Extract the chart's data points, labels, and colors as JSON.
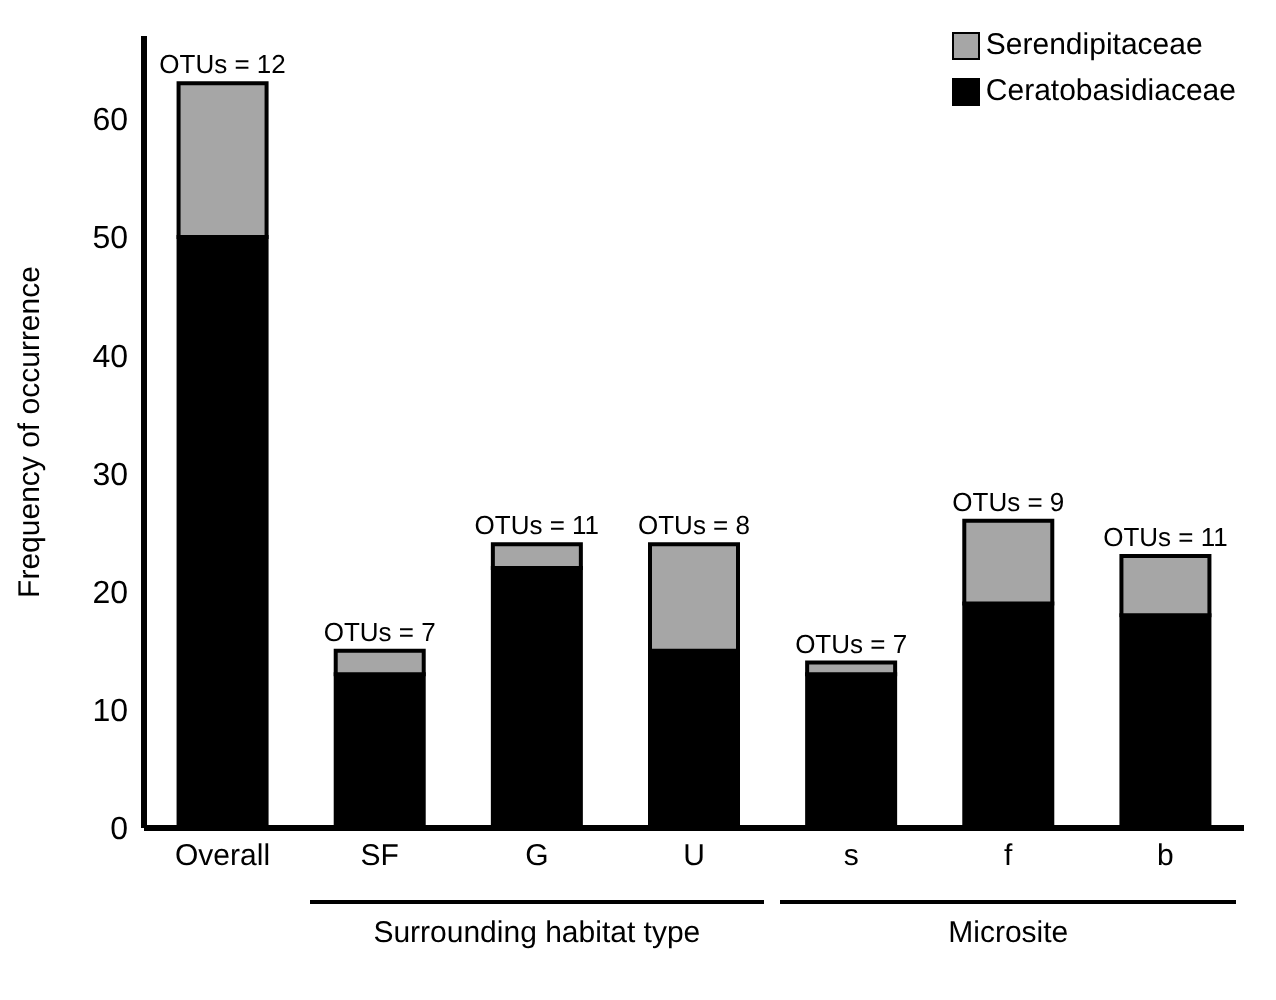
{
  "chart_data": {
    "type": "bar",
    "stacked": true,
    "ylabel": "Frequency of occurrence",
    "categories": [
      "Overall",
      "SF",
      "G",
      "U",
      "s",
      "f",
      "b"
    ],
    "series": [
      {
        "name": "Ceratobasidiaceae",
        "color": "#000000",
        "values": [
          50,
          13,
          22,
          15,
          13,
          19,
          18
        ]
      },
      {
        "name": "Serendipitaceae",
        "color": "#a6a6a6",
        "values": [
          13,
          2,
          2,
          9,
          1,
          7,
          5
        ]
      }
    ],
    "ylim": [
      0,
      67
    ],
    "yticks": [
      0,
      10,
      20,
      30,
      40,
      50,
      60
    ],
    "grid": false,
    "legend": "top right",
    "annotations": [
      {
        "text": "OTUs = 12",
        "x": "Overall",
        "y": 63
      },
      {
        "text": "OTUs = 7",
        "x": "SF",
        "y": 15
      },
      {
        "text": "OTUs = 11",
        "x": "G",
        "y": 24
      },
      {
        "text": "OTUs = 8",
        "x": "U",
        "y": 24
      },
      {
        "text": "OTUs = 7",
        "x": "s",
        "y": 14
      },
      {
        "text": "OTUs = 9",
        "x": "f",
        "y": 26
      },
      {
        "text": "OTUs = 11",
        "x": "b",
        "y": 23
      },
      "Surrounding habitat type",
      "Microsite"
    ]
  }
}
